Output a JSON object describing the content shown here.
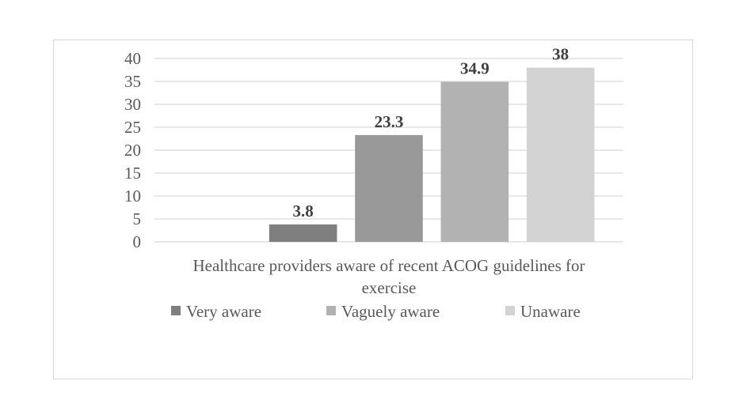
{
  "chart_data": {
    "type": "bar",
    "categories": [
      "Healthcare providers aware of recent ACOG guidelines for exercise"
    ],
    "xlabel_lines": [
      "Healthcare providers aware of recent ACOG guidelines for",
      "exercise"
    ],
    "ylim": [
      0,
      40
    ],
    "yticks": [
      0,
      5,
      10,
      15,
      20,
      25,
      30,
      35,
      40
    ],
    "grid": true,
    "legend_position": "bottom",
    "series": [
      {
        "name": "",
        "values": [
          0
        ],
        "color": "#ffffff"
      },
      {
        "name": "Very aware",
        "values": [
          3.8
        ],
        "color": "#7f7f7f",
        "label": "3.8"
      },
      {
        "name": "",
        "values": [
          23.3
        ],
        "color": "#999999",
        "label": "23.3"
      },
      {
        "name": "Vaguely aware",
        "values": [
          34.9
        ],
        "color": "#b2b2b2",
        "label": "34.9"
      },
      {
        "name": "Unaware",
        "values": [
          38
        ],
        "color": "#d3d3d3",
        "label": "38"
      }
    ],
    "legend": [
      {
        "name": "Very aware",
        "color": "#7f7f7f"
      },
      {
        "name": "Vaguely aware",
        "color": "#b2b2b2"
      },
      {
        "name": "Unaware",
        "color": "#d3d3d3"
      }
    ]
  }
}
